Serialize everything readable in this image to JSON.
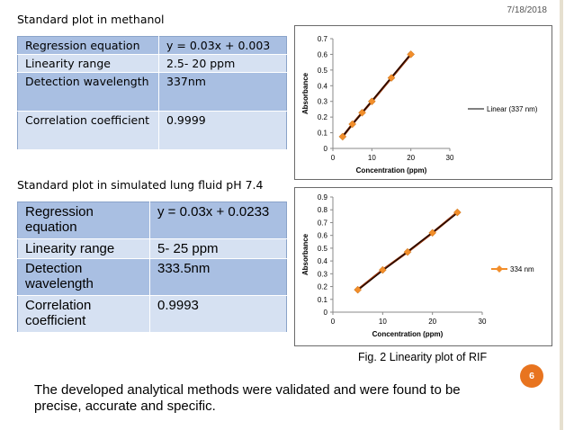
{
  "date": "7/18/2018",
  "page_number": "6",
  "section1": {
    "heading": "Standard plot in methanol",
    "rows": [
      {
        "label": "Regression equation",
        "value": "y = 0.03x + 0.003"
      },
      {
        "label": "Linearity range",
        "value": "2.5- 20 ppm"
      },
      {
        "label": "Detection wavelength",
        "value": "337nm"
      },
      {
        "label": "Correlation coefficient",
        "value": "0.9999"
      }
    ]
  },
  "section2": {
    "heading": "Standard plot in  simulated lung fluid pH 7.4",
    "rows": [
      {
        "label": "Regression equation",
        "value": "y = 0.03x + 0.0233"
      },
      {
        "label": "Linearity range",
        "value": "5- 25 ppm"
      },
      {
        "label": "Detection wavelength",
        "value": "333.5nm"
      },
      {
        "label": "Correlation coefficient",
        "value": "0.9993"
      }
    ]
  },
  "caption": "Fig. 2 Linearity plot of RIF",
  "conclusion": "The developed analytical methods were validated and were found to be precise, accurate and specific.",
  "colors": {
    "marker": "#f28e2b",
    "series_line": "#8b2c00",
    "trend_line": "#000000"
  },
  "chart_data": [
    {
      "type": "line",
      "xlabel": "Concentration (ppm)",
      "ylabel": "Absorbance",
      "xlim": [
        0,
        30
      ],
      "ylim": [
        0,
        0.7
      ],
      "xticks": [
        0,
        10,
        20,
        30
      ],
      "yticks": [
        0,
        0.1,
        0.2,
        0.3,
        0.4,
        0.5,
        0.6,
        0.7
      ],
      "legend": "Linear (337 nm)",
      "legend_type": "trendline",
      "x": [
        2.5,
        5,
        7.5,
        10,
        15,
        20
      ],
      "y": [
        0.075,
        0.155,
        0.228,
        0.3,
        0.45,
        0.6
      ],
      "trend": {
        "slope": 0.03,
        "intercept": 0.003
      }
    },
    {
      "type": "line",
      "xlabel": "Concentration (ppm)",
      "ylabel": "Absorbance",
      "xlim": [
        0,
        30
      ],
      "ylim": [
        0,
        0.9
      ],
      "xticks": [
        0,
        10,
        20,
        30
      ],
      "yticks": [
        0,
        0.1,
        0.2,
        0.3,
        0.4,
        0.5,
        0.6,
        0.7,
        0.8,
        0.9
      ],
      "legend": "334 nm",
      "legend_type": "series",
      "x": [
        5,
        10,
        15,
        20,
        25
      ],
      "y": [
        0.175,
        0.33,
        0.47,
        0.62,
        0.78
      ],
      "trend": {
        "slope": 0.03,
        "intercept": 0.0233
      }
    }
  ]
}
